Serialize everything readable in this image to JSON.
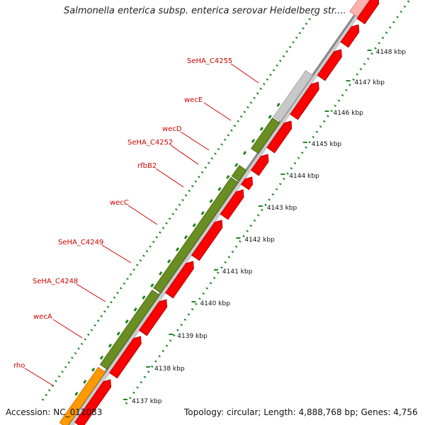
{
  "title": "Salmonella enterica subsp. enterica serovar Heidelberg str....",
  "accession": "Accession: NC_011083",
  "summary": "Topology: circular; Length: 4,888,768 bp; Genes: 4,756",
  "colors": {
    "forward_gene": "#6b8e23",
    "forward_gene_edge": "#4a6a12",
    "reverse_gene": "#ff0000",
    "reverse_gene_edge": "#b00000",
    "other_gene": "#c8c8c8",
    "rrna_gene": "#ff9900",
    "label": "#cc0000",
    "tick": "#228822",
    "backbone": "#888888"
  },
  "kbp_ticks": [
    "4137 kbp",
    "4138 kbp",
    "4139 kbp",
    "4140 kbp",
    "4141 kbp",
    "4142 kbp",
    "4143 kbp",
    "4144 kbp",
    "4145 kbp",
    "4146 kbp",
    "4147 kbp",
    "4148 kbp"
  ],
  "gene_labels": [
    {
      "name": "SeHA_C4255",
      "kind": "other"
    },
    {
      "name": "wecE",
      "kind": "forward"
    },
    {
      "name": "wecD",
      "kind": "forward"
    },
    {
      "name": "SeHA_C4252",
      "kind": "forward"
    },
    {
      "name": "rfbB2",
      "kind": "forward"
    },
    {
      "name": "wecC",
      "kind": "forward"
    },
    {
      "name": "SeHA_C4249",
      "kind": "forward"
    },
    {
      "name": "SeHA_C4248",
      "kind": "forward"
    },
    {
      "name": "wecA",
      "kind": "forward"
    },
    {
      "name": "rho",
      "kind": "rrna"
    }
  ]
}
